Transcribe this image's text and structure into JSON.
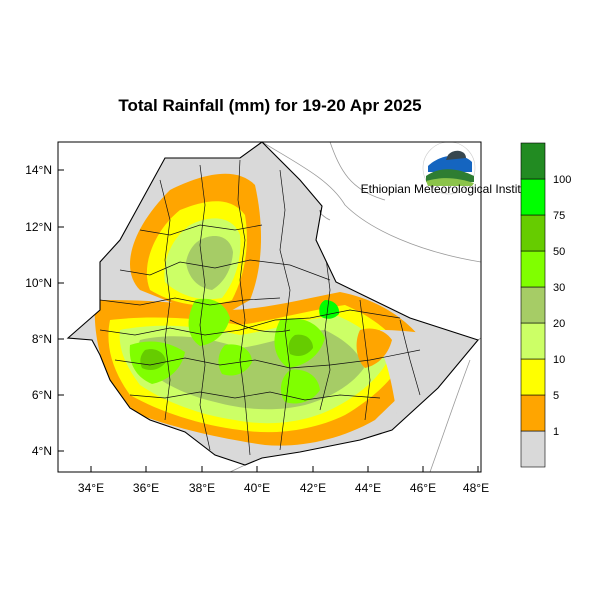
{
  "title": "Total Rainfall (mm) for 19-20 Apr 2025",
  "lat_ticks": [
    "14°N",
    "12°N",
    "10°N",
    "8°N",
    "6°N",
    "4°N"
  ],
  "lon_ticks": [
    "34°E",
    "36°E",
    "38°E",
    "40°E",
    "42°E",
    "44°E",
    "46°E",
    "48°E"
  ],
  "colorbar": {
    "labels": [
      "1",
      "5",
      "10",
      "20",
      "30",
      "50",
      "75",
      "100"
    ],
    "colors": [
      "#d9d9d9",
      "#ffa500",
      "#ffff00",
      "#ccff66",
      "#a6cc66",
      "#80ff00",
      "#66cc00",
      "#00ff00",
      "#228b22"
    ]
  },
  "logo": {
    "label": "Ethiopian Meteorological Institute",
    "colors": {
      "sky": "#1565c0",
      "hill": "#2e7d32",
      "ground": "#8bc34a"
    }
  },
  "map": {
    "lon_range": [
      33,
      48
    ],
    "lat_range": [
      3.2,
      15
    ],
    "dry_color": "#d9d9d9"
  }
}
